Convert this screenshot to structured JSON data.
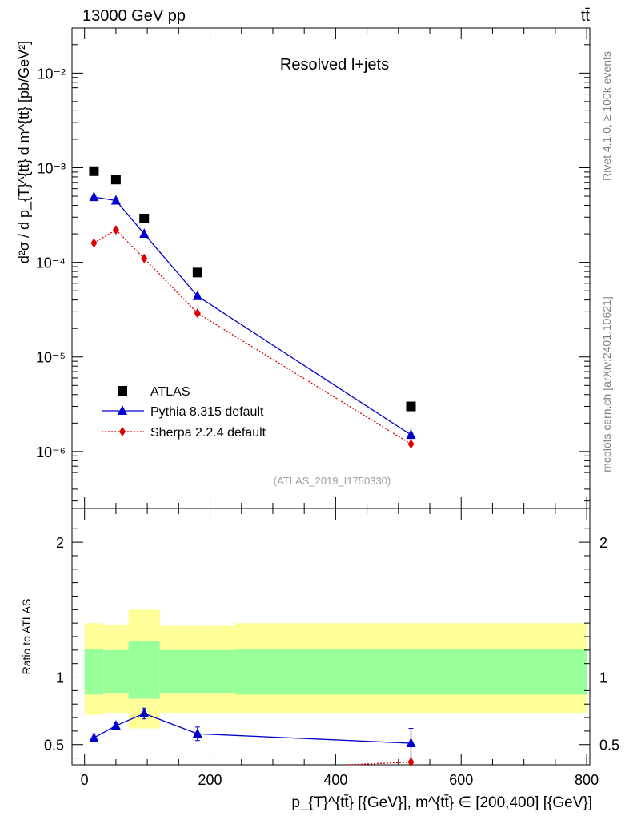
{
  "header": {
    "energy": "13000 GeV pp",
    "process": "tt̄",
    "panel_title": "Resolved l+jets",
    "analysis_id": "(ATLAS_2019_I1750330)"
  },
  "side_text": {
    "rivet": "Rivet 4.1.0, ≥ 100k events",
    "mcplots": "mcplots.cern.ch [arXiv:2401.10621]"
  },
  "labels": {
    "ylabel_main": "d²σ / d p_{T}^{tt̄} d m^{tt̄} [pb/GeV²]",
    "ylabel_ratio": "Ratio to ATLAS",
    "xlabel": "p_{T}^{tt̄} [{GeV}], m^{tt̄} ∈ [200,400] [{GeV}]"
  },
  "chart_data": {
    "type": "scatter",
    "xlim": [
      -20,
      805
    ],
    "main": {
      "yscale": "log",
      "ylim": [
        2.5e-07,
        0.03
      ],
      "yticks": [
        {
          "value": 1e-06,
          "label": "10⁻⁶"
        },
        {
          "value": 1e-05,
          "label": "10⁻⁵"
        },
        {
          "value": 0.0001,
          "label": "10⁻⁴"
        },
        {
          "value": 0.001,
          "label": "10⁻³"
        },
        {
          "value": 0.01,
          "label": "10⁻²"
        }
      ]
    },
    "ratio": {
      "ylim": [
        0.35,
        2.25
      ],
      "yticks": [
        {
          "value": 0.5,
          "label": "0.5"
        },
        {
          "value": 1,
          "label": "1"
        },
        {
          "value": 2,
          "label": "2"
        }
      ]
    },
    "xticks": [
      {
        "value": 0,
        "label": "0"
      },
      {
        "value": 200,
        "label": "200"
      },
      {
        "value": 400,
        "label": "400"
      },
      {
        "value": 600,
        "label": "600"
      },
      {
        "value": 800,
        "label": "800"
      }
    ],
    "bin_edges": [
      0,
      30,
      70,
      120,
      240,
      800
    ],
    "series": [
      {
        "name": "ATLAS",
        "marker": "square",
        "color": "#000000",
        "x": [
          15,
          50,
          95,
          180,
          520
        ],
        "y": [
          0.00092,
          0.00075,
          0.00029,
          7.8e-05,
          3e-06
        ]
      },
      {
        "name": "Pythia 8.315 default",
        "marker": "triangle",
        "line": "solid",
        "color": "#0000cc",
        "x": [
          15,
          50,
          95,
          180,
          520
        ],
        "y": [
          0.00049,
          0.00045,
          0.0002,
          4.4e-05,
          1.5e-06
        ],
        "yerr": [
          0,
          0,
          0,
          0,
          3e-07
        ],
        "ratio": [
          0.55,
          0.64,
          0.73,
          0.58,
          0.51
        ],
        "ratio_err": [
          0.03,
          0.025,
          0.04,
          0.05,
          0.11
        ]
      },
      {
        "name": "Sherpa 2.2.4 default",
        "marker": "diamond",
        "line": "dotted",
        "color": "#dd0000",
        "x": [
          15,
          50,
          95,
          180,
          520
        ],
        "y": [
          0.00016,
          0.00022,
          0.00011,
          2.9e-05,
          1.2e-06
        ],
        "ratio_line": {
          "x": [
            420,
            520
          ],
          "y": [
            0.33,
            0.37
          ]
        },
        "ratio_point": {
          "x": 520,
          "y": 0.37,
          "err": 0.04
        }
      }
    ],
    "bands": [
      {
        "x0": 0,
        "x1": 30,
        "inner": [
          0.87,
          1.21
        ],
        "outer": [
          0.72,
          1.4
        ]
      },
      {
        "x0": 30,
        "x1": 70,
        "inner": [
          0.88,
          1.2
        ],
        "outer": [
          0.73,
          1.39
        ]
      },
      {
        "x0": 70,
        "x1": 120,
        "inner": [
          0.84,
          1.27
        ],
        "outer": [
          0.62,
          1.5
        ]
      },
      {
        "x0": 120,
        "x1": 240,
        "inner": [
          0.88,
          1.2
        ],
        "outer": [
          0.73,
          1.38
        ]
      },
      {
        "x0": 240,
        "x1": 800,
        "inner": [
          0.87,
          1.21
        ],
        "outer": [
          0.73,
          1.4
        ]
      }
    ],
    "colors": {
      "inner_band": "#99ff99",
      "outer_band": "#ffff99"
    }
  }
}
